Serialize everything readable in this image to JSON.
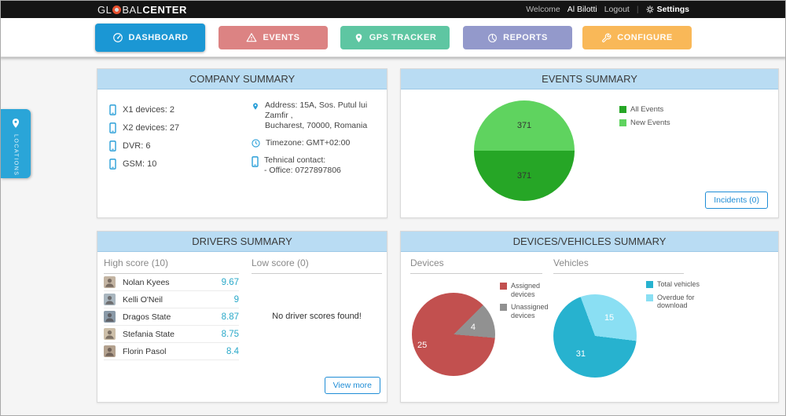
{
  "topbar": {
    "logo_prefix": "GL",
    "logo_mid": "BAL",
    "logo_suffix": "CENTER",
    "welcome_label": "Welcome",
    "username": "Al Bilotti",
    "logout_label": "Logout",
    "separator": "|",
    "settings_label": "Settings"
  },
  "nav": {
    "items": [
      {
        "label": "DASHBOARD",
        "color": "#1b97d4",
        "active": true
      },
      {
        "label": "EVENTS",
        "color": "#dc8383",
        "active": false
      },
      {
        "label": "GPS TRACKER",
        "color": "#5ec6a2",
        "active": false
      },
      {
        "label": "REPORTS",
        "color": "#9399cb",
        "active": false
      },
      {
        "label": "CONFIGURE",
        "color": "#f9b858",
        "active": false
      }
    ]
  },
  "locations_tab": {
    "label": "LOCATIONS"
  },
  "company": {
    "title": "COMPANY SUMMARY",
    "device_counts": [
      {
        "label": "X1 devices: 2"
      },
      {
        "label": "X2 devices: 27"
      },
      {
        "label": "DVR: 6"
      },
      {
        "label": "GSM: 10"
      }
    ],
    "address_line1": "Address: 15A, Sos. Putul lui Zamfir ,",
    "address_line2": "Bucharest, 70000, Romania",
    "timezone": "Timezone: GMT+02:00",
    "contact_heading": "Tehnical contact:",
    "contact_office": "- Office: 0727897806"
  },
  "events": {
    "title": "EVENTS SUMMARY",
    "incidents_button": "Incidents (0)"
  },
  "drivers": {
    "title": "DRIVERS SUMMARY",
    "high_heading": "High score (10)",
    "low_heading": "Low score (0)",
    "high_scores": [
      {
        "name": "Nolan Kyees",
        "score": "9.67"
      },
      {
        "name": "Kelli O'Neil",
        "score": "9"
      },
      {
        "name": "Dragos State",
        "score": "8.87"
      },
      {
        "name": "Stefania State",
        "score": "8.75"
      },
      {
        "name": "Florin Pasol",
        "score": "8.4"
      }
    ],
    "low_message": "No driver scores found!",
    "view_more_button": "View more"
  },
  "devices_vehicles": {
    "title": "DEVICES/VEHICLES SUMMARY",
    "devices_heading": "Devices",
    "vehicles_heading": "Vehicles"
  },
  "chart_data": [
    {
      "id": "events-pie",
      "type": "pie",
      "title": "EVENTS SUMMARY",
      "legend_position": "right",
      "start_angle": 270,
      "size": 128,
      "series": [
        {
          "name": "New Events",
          "value": 371,
          "color": "#5fd35f",
          "label_color": "#333333",
          "label_radius": 0.5
        },
        {
          "name": "All Events",
          "value": 371,
          "color": "#26a626",
          "label_color": "#333333",
          "label_radius": 0.5
        }
      ]
    },
    {
      "id": "devices-pie",
      "type": "pie",
      "title": "Devices",
      "legend_position": "right",
      "start_angle": 95,
      "size": 106,
      "series": [
        {
          "name": "Assigned devices",
          "value": 25,
          "color": "#c2504f",
          "label_color": "#ffffff",
          "label_radius": 0.8
        },
        {
          "name": "Unassigned devices",
          "value": 4,
          "color": "#919191",
          "label_color": "#ffffff",
          "label_radius": 0.5
        }
      ]
    },
    {
      "id": "vehicles-pie",
      "type": "pie",
      "title": "Vehicles",
      "legend_position": "right",
      "start_angle": 97,
      "size": 106,
      "series": [
        {
          "name": "Total vehicles",
          "value": 31,
          "color": "#27b2cf",
          "label_color": "#ffffff",
          "label_radius": 0.55
        },
        {
          "name": "Overdue for download",
          "value": 15,
          "color": "#8adff3",
          "label_color": "#ffffff",
          "label_radius": 0.55
        }
      ]
    }
  ]
}
